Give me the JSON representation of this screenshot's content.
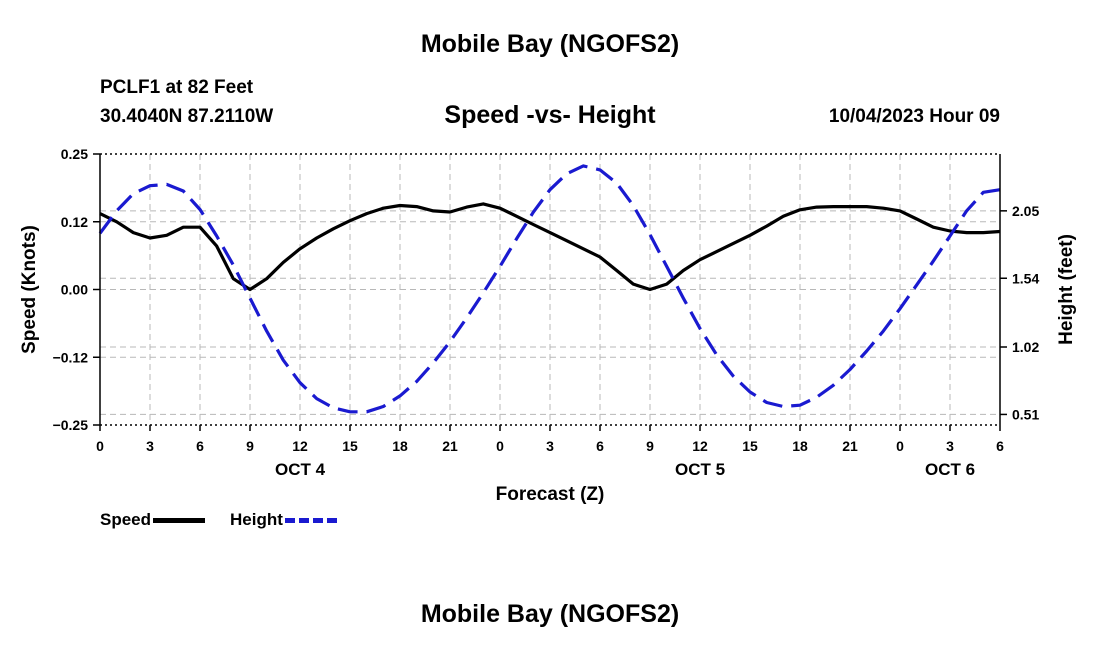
{
  "header": {
    "title": "Mobile Bay (NGOFS2)",
    "station": "PCLF1 at 82 Feet",
    "coords": "30.4040N  87.2110W",
    "subtitle": "Speed -vs- Height",
    "datetime": "10/04/2023 Hour 09"
  },
  "footer": {
    "title": "Mobile Bay (NGOFS2)"
  },
  "legend": {
    "speed_label": "Speed",
    "height_label": "Height"
  },
  "chart_data": {
    "type": "line",
    "title": "Speed -vs- Height",
    "xlabel": "Forecast (Z)",
    "ylabel_left": "Speed (Knots)",
    "ylabel_right": "Height (feet)",
    "x_tick_labels": [
      "0",
      "3",
      "6",
      "9",
      "12",
      "15",
      "18",
      "21",
      "0",
      "3",
      "6",
      "9",
      "12",
      "15",
      "18",
      "21",
      "0",
      "3",
      "6"
    ],
    "day_labels": [
      {
        "label": "OCT 4",
        "hour": 12
      },
      {
        "label": "OCT 5",
        "hour": 36
      },
      {
        "label": "OCT 6",
        "hour": 51
      }
    ],
    "xlim": [
      0,
      54
    ],
    "ylim_left": [
      -0.25,
      0.25
    ],
    "left_ticks": [
      {
        "value": -0.25,
        "label": "−0.25"
      },
      {
        "value": -0.125,
        "label": "−0.12"
      },
      {
        "value": 0,
        "label": "0.00"
      },
      {
        "value": 0.125,
        "label": "0.12"
      },
      {
        "value": 0.25,
        "label": "0.25"
      }
    ],
    "right_ticks": [
      {
        "value": 0.51,
        "label": "0.51"
      },
      {
        "value": 1.02,
        "label": "1.02"
      },
      {
        "value": 1.54,
        "label": "1.54"
      },
      {
        "value": 2.05,
        "label": "2.05"
      }
    ],
    "ylim_right": [
      0.43,
      2.48
    ],
    "grid": true,
    "legend_position": "bottom-left",
    "colors": {
      "speed": "#000000",
      "height": "#1a1ad0",
      "grid": "#b8b8b8"
    },
    "series": [
      {
        "name": "Speed",
        "axis": "left",
        "style": "solid",
        "points": [
          [
            0,
            0.14
          ],
          [
            1,
            0.125
          ],
          [
            2,
            0.105
          ],
          [
            3,
            0.095
          ],
          [
            4,
            0.1
          ],
          [
            5,
            0.115
          ],
          [
            6,
            0.115
          ],
          [
            7,
            0.08
          ],
          [
            8,
            0.02
          ],
          [
            9,
            0.0
          ],
          [
            10,
            0.02
          ],
          [
            11,
            0.05
          ],
          [
            12,
            0.075
          ],
          [
            13,
            0.095
          ],
          [
            14,
            0.112
          ],
          [
            15,
            0.127
          ],
          [
            16,
            0.14
          ],
          [
            17,
            0.15
          ],
          [
            18,
            0.155
          ],
          [
            19,
            0.153
          ],
          [
            20,
            0.145
          ],
          [
            21,
            0.143
          ],
          [
            22,
            0.152
          ],
          [
            23,
            0.158
          ],
          [
            24,
            0.15
          ],
          [
            25,
            0.135
          ],
          [
            26,
            0.12
          ],
          [
            27,
            0.105
          ],
          [
            28,
            0.09
          ],
          [
            29,
            0.075
          ],
          [
            30,
            0.06
          ],
          [
            31,
            0.035
          ],
          [
            32,
            0.01
          ],
          [
            33,
            0.0
          ],
          [
            34,
            0.01
          ],
          [
            35,
            0.035
          ],
          [
            36,
            0.055
          ],
          [
            37,
            0.07
          ],
          [
            38,
            0.085
          ],
          [
            39,
            0.1
          ],
          [
            40,
            0.117
          ],
          [
            41,
            0.135
          ],
          [
            42,
            0.147
          ],
          [
            43,
            0.152
          ],
          [
            44,
            0.153
          ],
          [
            45,
            0.153
          ],
          [
            46,
            0.153
          ],
          [
            47,
            0.15
          ],
          [
            48,
            0.145
          ],
          [
            49,
            0.13
          ],
          [
            50,
            0.115
          ],
          [
            51,
            0.108
          ],
          [
            52,
            0.105
          ],
          [
            53,
            0.105
          ],
          [
            54,
            0.107
          ]
        ]
      },
      {
        "name": "Height",
        "axis": "right",
        "style": "dashed",
        "points": [
          [
            0,
            1.88
          ],
          [
            1,
            2.05
          ],
          [
            2,
            2.18
          ],
          [
            3,
            2.24
          ],
          [
            4,
            2.25
          ],
          [
            5,
            2.2
          ],
          [
            6,
            2.06
          ],
          [
            7,
            1.86
          ],
          [
            8,
            1.64
          ],
          [
            9,
            1.39
          ],
          [
            10,
            1.14
          ],
          [
            11,
            0.92
          ],
          [
            12,
            0.75
          ],
          [
            13,
            0.63
          ],
          [
            14,
            0.56
          ],
          [
            15,
            0.53
          ],
          [
            16,
            0.53
          ],
          [
            17,
            0.57
          ],
          [
            18,
            0.65
          ],
          [
            19,
            0.76
          ],
          [
            20,
            0.9
          ],
          [
            21,
            1.06
          ],
          [
            22,
            1.24
          ],
          [
            23,
            1.43
          ],
          [
            24,
            1.63
          ],
          [
            25,
            1.84
          ],
          [
            26,
            2.04
          ],
          [
            27,
            2.21
          ],
          [
            28,
            2.33
          ],
          [
            29,
            2.39
          ],
          [
            30,
            2.36
          ],
          [
            31,
            2.26
          ],
          [
            32,
            2.09
          ],
          [
            33,
            1.87
          ],
          [
            34,
            1.63
          ],
          [
            35,
            1.39
          ],
          [
            36,
            1.16
          ],
          [
            37,
            0.96
          ],
          [
            38,
            0.8
          ],
          [
            39,
            0.68
          ],
          [
            40,
            0.6
          ],
          [
            41,
            0.57
          ],
          [
            42,
            0.58
          ],
          [
            43,
            0.64
          ],
          [
            44,
            0.73
          ],
          [
            45,
            0.85
          ],
          [
            46,
            0.99
          ],
          [
            47,
            1.14
          ],
          [
            48,
            1.31
          ],
          [
            49,
            1.49
          ],
          [
            50,
            1.67
          ],
          [
            51,
            1.86
          ],
          [
            52,
            2.05
          ],
          [
            53,
            2.19
          ],
          [
            54,
            2.21
          ]
        ]
      }
    ]
  }
}
